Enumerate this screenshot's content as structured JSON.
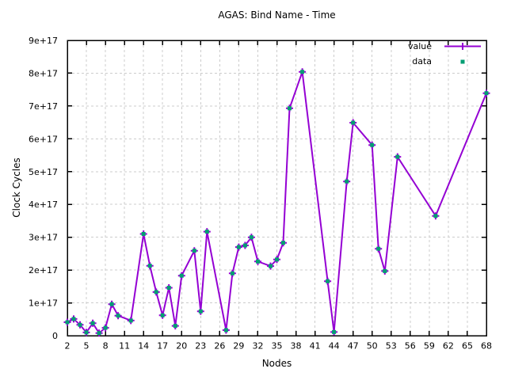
{
  "colors": {
    "line": "#9400d3",
    "point_marker": "#009e73",
    "grid": "#cccccc",
    "axis": "#000000",
    "background": "#ffffff",
    "text": "#000000"
  },
  "chart_data": {
    "type": "line",
    "title": "AGAS: Bind Name - Time",
    "xlabel": "Nodes",
    "ylabel": "Clock Cycles",
    "xlim": [
      2,
      68
    ],
    "ylim": [
      0,
      9e+17
    ],
    "grid": true,
    "legend_position": "inside-top-right",
    "xticks": [
      2,
      5,
      8,
      11,
      14,
      17,
      20,
      23,
      26,
      29,
      32,
      35,
      38,
      41,
      44,
      47,
      50,
      53,
      56,
      59,
      62,
      65,
      68
    ],
    "yticks": [
      {
        "v": 0,
        "label": "0"
      },
      {
        "v": 1e+17,
        "label": "1e+17"
      },
      {
        "v": 2e+17,
        "label": "2e+17"
      },
      {
        "v": 3e+17,
        "label": "3e+17"
      },
      {
        "v": 4e+17,
        "label": "4e+17"
      },
      {
        "v": 5e+17,
        "label": "5e+17"
      },
      {
        "v": 6e+17,
        "label": "6e+17"
      },
      {
        "v": 7e+17,
        "label": "7e+17"
      },
      {
        "v": 8e+17,
        "label": "8e+17"
      },
      {
        "v": 9e+17,
        "label": "9e+17"
      }
    ],
    "legend": [
      {
        "label": "value",
        "style": "line-with-plus",
        "color": "#9400d3"
      },
      {
        "label": "data",
        "style": "filled-square",
        "color": "#009e73"
      }
    ],
    "x": [
      2,
      3,
      4,
      5,
      6,
      7,
      8,
      9,
      10,
      12,
      14,
      15,
      16,
      17,
      18,
      19,
      20,
      22,
      23,
      24,
      27,
      28,
      29,
      30,
      31,
      32,
      34,
      35,
      36,
      37,
      39,
      43,
      44,
      46,
      47,
      50,
      51,
      52,
      54,
      60,
      68
    ],
    "y": [
      4.1e+16,
      5.1e+16,
      3.3e+16,
      1e+16,
      3.8e+16,
      8000000000000000.0,
      2.4e+16,
      9.6e+16,
      6.1e+16,
      4.6e+16,
      3.1e+17,
      2.13e+17,
      1.33e+17,
      6.2e+16,
      1.46e+17,
      3e+16,
      1.83e+17,
      2.59e+17,
      7.4e+16,
      3.17e+17,
      1.7e+16,
      1.9e+17,
      2.7e+17,
      2.75e+17,
      3e+17,
      2.26e+17,
      2.12e+17,
      2.32e+17,
      2.83e+17,
      6.93e+17,
      8.04e+17,
      1.66e+17,
      1.1e+16,
      4.7e+17,
      6.49e+17,
      5.81e+17,
      2.65e+17,
      1.97e+17,
      5.45e+17,
      3.65e+17,
      7.39e+17
    ]
  }
}
